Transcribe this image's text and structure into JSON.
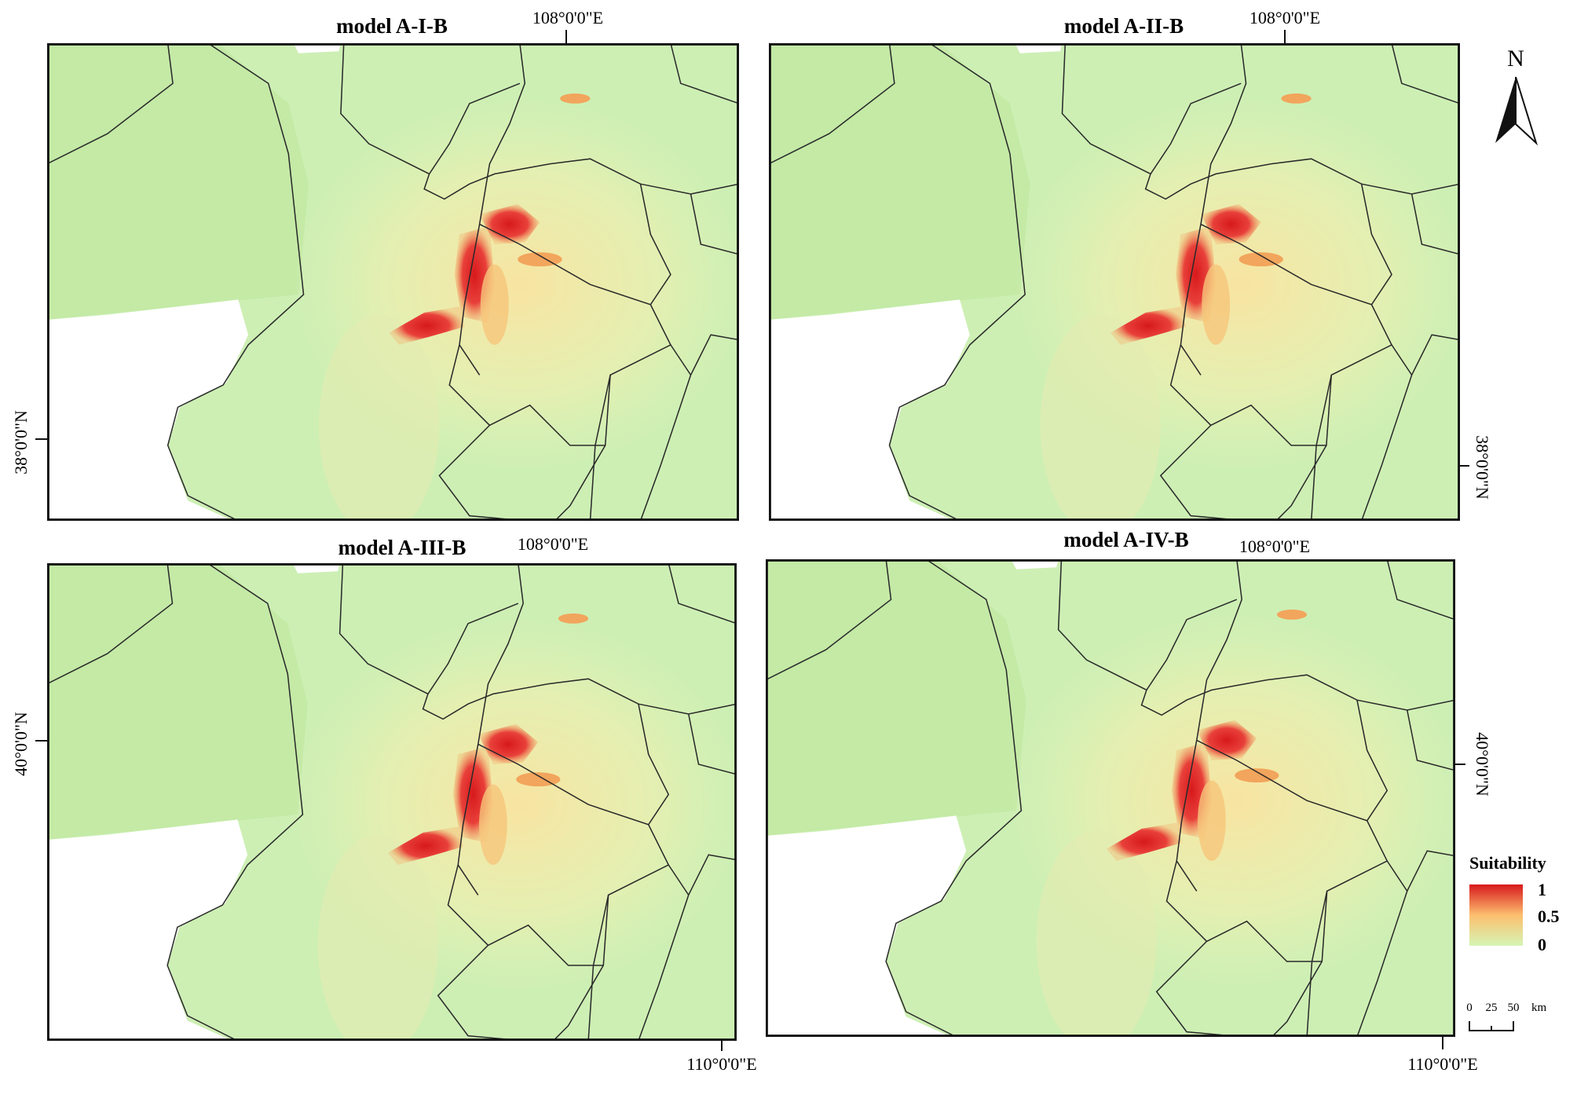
{
  "panels": [
    {
      "title": "model A-I-B",
      "top_label": "108°0'0\"E",
      "side_label": "38°0'0\"N"
    },
    {
      "title": "model A-II-B",
      "top_label": "108°0'0\"E",
      "side_label": "38°0'0\"N"
    },
    {
      "title": "model A-III-B",
      "top_label": "108°0'0\"E",
      "side_label": "40°0'0\"N",
      "bottom_label": "110°0'0\"E"
    },
    {
      "title": "model A-IV-B",
      "top_label": "108°0'0\"E",
      "side_label": "40°0'0\"N",
      "bottom_label": "110°0'0\"E"
    }
  ],
  "north": "N",
  "legend": {
    "title": "Suitability",
    "labels": [
      "1",
      "0.5",
      "0"
    ]
  },
  "scale_bar": {
    "labels": [
      "0",
      "25",
      "50",
      "km"
    ]
  }
}
